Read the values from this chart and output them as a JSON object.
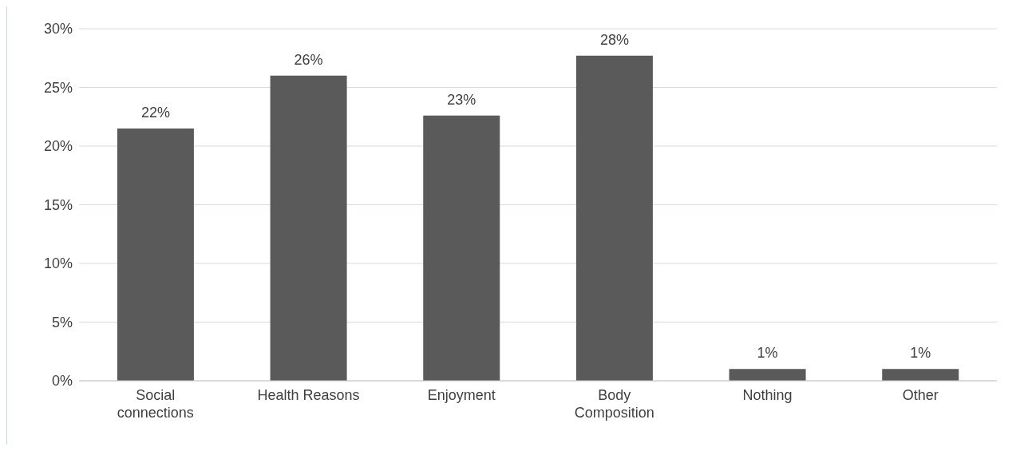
{
  "chart_data": {
    "type": "bar",
    "categories": [
      "Social connections",
      "Health Reasons",
      "Enjoyment",
      "Body Composition",
      "Nothing",
      "Other"
    ],
    "values": [
      21.5,
      26,
      22.6,
      27.7,
      1,
      1
    ],
    "value_labels": [
      "22%",
      "26%",
      "23%",
      "28%",
      "1%",
      "1%"
    ],
    "color": "#5a5a5a",
    "ylim": [
      0,
      30
    ],
    "yticks": [
      {
        "value": 0,
        "label": "0%"
      },
      {
        "value": 5,
        "label": "5%"
      },
      {
        "value": 10,
        "label": "10%"
      },
      {
        "value": 15,
        "label": "15%"
      },
      {
        "value": 20,
        "label": "20%"
      },
      {
        "value": 25,
        "label": "25%"
      },
      {
        "value": 30,
        "label": "30%"
      }
    ],
    "grid": "y",
    "legend": false
  }
}
